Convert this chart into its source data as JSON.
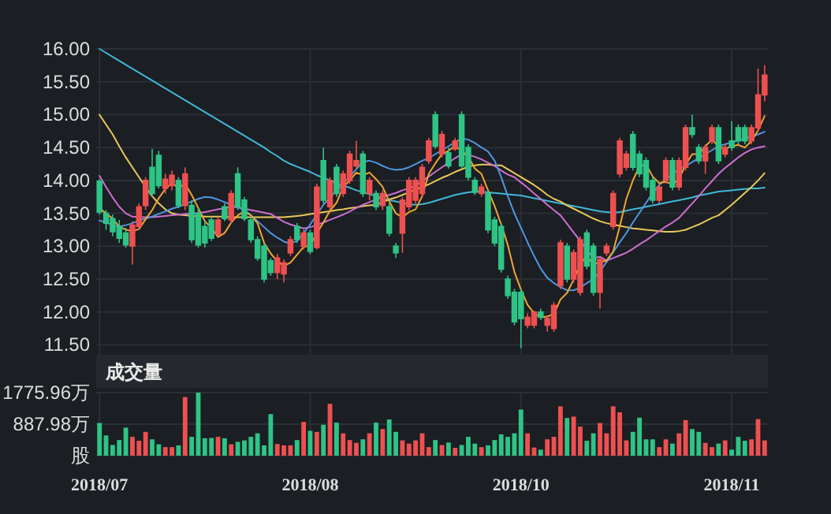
{
  "chart_data": [
    {
      "type": "candlestick",
      "tick_labels": "y",
      "grid": true,
      "ylim": [
        11.35,
        16
      ],
      "yticks": [
        {
          "value": 11.5,
          "label": "11.50"
        },
        {
          "value": 12,
          "label": "12.00"
        },
        {
          "value": 12.5,
          "label": "12.50"
        },
        {
          "value": 13,
          "label": "13.00"
        },
        {
          "value": 13.5,
          "label": "13.50"
        },
        {
          "value": 14,
          "label": "14.00"
        },
        {
          "value": 14.5,
          "label": "14.50"
        },
        {
          "value": 15,
          "label": "15.00"
        },
        {
          "value": 15.5,
          "label": "15.50"
        },
        {
          "value": 16,
          "label": "16.00"
        }
      ],
      "categories": [
        "2018/07",
        null,
        null,
        null,
        null,
        null,
        null,
        null,
        null,
        null,
        null,
        null,
        null,
        null,
        null,
        null,
        null,
        null,
        null,
        null,
        null,
        null,
        null,
        null,
        null,
        null,
        null,
        null,
        null,
        null,
        null,
        null,
        "2018/08",
        null,
        null,
        null,
        null,
        null,
        null,
        null,
        null,
        null,
        null,
        null,
        null,
        null,
        null,
        null,
        null,
        null,
        null,
        null,
        null,
        null,
        null,
        null,
        null,
        null,
        null,
        null,
        null,
        null,
        null,
        null,
        "2018/10",
        null,
        null,
        null,
        null,
        null,
        null,
        null,
        null,
        null,
        null,
        null,
        null,
        null,
        null,
        null,
        null,
        null,
        null,
        null,
        null,
        null,
        null,
        null,
        null,
        null,
        null,
        null,
        null,
        null,
        null,
        null,
        "2018/11",
        null,
        null,
        null,
        null,
        null
      ],
      "ohlc": [
        [
          13.99,
          14.02,
          13.48,
          13.52
        ],
        [
          13.5,
          13.55,
          13.25,
          13.35
        ],
        [
          13.42,
          13.48,
          13.15,
          13.22
        ],
        [
          13.3,
          13.4,
          13.05,
          13.12
        ],
        [
          13.2,
          13.28,
          12.98,
          13.02
        ],
        [
          13.0,
          13.38,
          12.72,
          13.32
        ],
        [
          13.3,
          13.65,
          13.25,
          13.6
        ],
        [
          13.62,
          14.05,
          13.55,
          14.0
        ],
        [
          14.2,
          14.48,
          13.75,
          13.8
        ],
        [
          14.38,
          14.45,
          13.88,
          13.92
        ],
        [
          13.88,
          14.1,
          13.8,
          14.02
        ],
        [
          13.92,
          14.15,
          13.85,
          14.08
        ],
        [
          14.0,
          14.05,
          13.58,
          13.62
        ],
        [
          13.62,
          14.2,
          13.55,
          14.1
        ],
        [
          13.62,
          13.7,
          13.05,
          13.1
        ],
        [
          13.5,
          13.58,
          12.98,
          13.02
        ],
        [
          13.3,
          13.38,
          12.98,
          13.05
        ],
        [
          13.4,
          13.45,
          13.08,
          13.12
        ],
        [
          13.18,
          13.45,
          13.15,
          13.4
        ],
        [
          13.6,
          13.65,
          13.38,
          13.42
        ],
        [
          13.4,
          13.85,
          13.35,
          13.8
        ],
        [
          14.1,
          14.2,
          13.55,
          13.6
        ],
        [
          13.7,
          13.75,
          13.38,
          13.42
        ],
        [
          13.4,
          13.45,
          13.05,
          13.1
        ],
        [
          13.1,
          13.15,
          12.78,
          12.82
        ],
        [
          13.0,
          13.05,
          12.45,
          12.5
        ],
        [
          12.78,
          12.82,
          12.55,
          12.6
        ],
        [
          12.6,
          12.88,
          12.5,
          12.82
        ],
        [
          12.58,
          12.8,
          12.45,
          12.75
        ],
        [
          12.9,
          13.15,
          12.85,
          13.1
        ],
        [
          13.3,
          13.35,
          13.05,
          13.1
        ],
        [
          13.0,
          13.25,
          12.95,
          13.2
        ],
        [
          13.2,
          13.25,
          12.88,
          12.92
        ],
        [
          12.98,
          13.95,
          12.95,
          13.9
        ],
        [
          14.3,
          14.5,
          13.65,
          13.7
        ],
        [
          13.6,
          14.05,
          13.55,
          14.0
        ],
        [
          14.2,
          14.25,
          13.75,
          13.8
        ],
        [
          13.8,
          14.15,
          13.75,
          14.1
        ],
        [
          14.0,
          14.45,
          13.95,
          14.4
        ],
        [
          14.22,
          14.6,
          14.18,
          14.3
        ],
        [
          14.4,
          14.45,
          13.75,
          13.8
        ],
        [
          13.8,
          14.05,
          13.7,
          14.0
        ],
        [
          13.8,
          13.85,
          13.55,
          13.6
        ],
        [
          13.62,
          13.85,
          13.55,
          13.8
        ],
        [
          13.6,
          13.65,
          13.15,
          13.2
        ],
        [
          13.0,
          13.05,
          12.82,
          12.9
        ],
        [
          13.2,
          13.75,
          12.9,
          13.7
        ],
        [
          13.6,
          14.05,
          13.55,
          14.0
        ],
        [
          13.7,
          14.05,
          13.65,
          14.0
        ],
        [
          13.8,
          14.25,
          13.75,
          14.2
        ],
        [
          14.3,
          14.65,
          14.25,
          14.6
        ],
        [
          15.0,
          15.05,
          14.48,
          14.52
        ],
        [
          14.4,
          14.75,
          14.35,
          14.7
        ],
        [
          14.42,
          14.5,
          14.18,
          14.22
        ],
        [
          14.48,
          14.65,
          14.45,
          14.6
        ],
        [
          15.0,
          15.05,
          14.18,
          14.22
        ],
        [
          14.5,
          14.55,
          14.0,
          14.05
        ],
        [
          14.0,
          14.05,
          13.78,
          13.82
        ],
        [
          13.8,
          13.95,
          13.75,
          13.9
        ],
        [
          13.8,
          13.85,
          13.2,
          13.25
        ],
        [
          13.4,
          13.45,
          13.0,
          13.05
        ],
        [
          13.3,
          13.35,
          12.6,
          12.65
        ],
        [
          12.5,
          12.55,
          12.2,
          12.25
        ],
        [
          12.3,
          12.35,
          11.8,
          11.85
        ],
        [
          12.3,
          12.35,
          11.45,
          11.9
        ],
        [
          11.8,
          11.98,
          11.75,
          11.92
        ],
        [
          11.8,
          12.02,
          11.75,
          12.0
        ],
        [
          12.0,
          12.05,
          11.88,
          11.92
        ],
        [
          11.8,
          11.95,
          11.7,
          11.9
        ],
        [
          11.75,
          12.15,
          11.7,
          12.1
        ],
        [
          12.4,
          13.1,
          12.35,
          13.05
        ],
        [
          13.0,
          13.05,
          12.45,
          12.5
        ],
        [
          12.5,
          12.95,
          12.45,
          12.9
        ],
        [
          12.3,
          13.15,
          12.25,
          13.1
        ],
        [
          13.2,
          13.25,
          12.65,
          12.7
        ],
        [
          13.0,
          13.05,
          12.25,
          12.3
        ],
        [
          12.3,
          12.85,
          12.05,
          12.8
        ],
        [
          12.9,
          13.05,
          12.85,
          13.0
        ],
        [
          13.3,
          13.85,
          13.25,
          13.8
        ],
        [
          14.1,
          14.65,
          14.05,
          14.6
        ],
        [
          14.2,
          14.45,
          14.15,
          14.4
        ],
        [
          14.7,
          14.75,
          14.15,
          14.2
        ],
        [
          14.4,
          14.45,
          14.05,
          14.1
        ],
        [
          14.3,
          14.35,
          13.85,
          13.9
        ],
        [
          14.0,
          14.05,
          13.65,
          13.7
        ],
        [
          13.7,
          13.95,
          13.65,
          13.9
        ],
        [
          14.0,
          14.35,
          13.95,
          14.3
        ],
        [
          14.3,
          14.35,
          13.85,
          13.9
        ],
        [
          13.9,
          14.35,
          13.85,
          14.3
        ],
        [
          14.2,
          14.85,
          14.15,
          14.8
        ],
        [
          14.8,
          15.0,
          14.65,
          14.7
        ],
        [
          14.5,
          14.55,
          14.25,
          14.3
        ],
        [
          14.3,
          14.55,
          14.1,
          14.5
        ],
        [
          14.6,
          14.85,
          14.55,
          14.8
        ],
        [
          14.8,
          14.85,
          14.25,
          14.3
        ],
        [
          14.4,
          14.55,
          14.35,
          14.5
        ],
        [
          14.6,
          14.9,
          14.45,
          14.5
        ],
        [
          14.8,
          14.85,
          14.55,
          14.6
        ],
        [
          14.8,
          14.85,
          14.55,
          14.6
        ],
        [
          14.6,
          14.85,
          14.55,
          14.8
        ],
        [
          14.8,
          15.7,
          14.75,
          15.3
        ],
        [
          15.3,
          15.75,
          15.2,
          15.6
        ]
      ],
      "colors": [
        "#2ec486",
        "#2ec486",
        "#2ec486",
        "#2ec486",
        "#2ec486",
        "#ee5050",
        "#ee5050",
        "#ee5050",
        "#2ec486",
        "#2ec486",
        "#ee5050",
        "#ee5050",
        "#2ec486",
        "#ee5050",
        "#2ec486",
        "#2ec486",
        "#2ec486",
        "#2ec486",
        "#ee5050",
        "#2ec486",
        "#ee5050",
        "#2ec486",
        "#2ec486",
        "#2ec486",
        "#2ec486",
        "#2ec486",
        "#2ec486",
        "#ee5050",
        "#ee5050",
        "#ee5050",
        "#2ec486",
        "#ee5050",
        "#2ec486",
        "#ee5050",
        "#2ec486",
        "#ee5050",
        "#2ec486",
        "#ee5050",
        "#ee5050",
        "#ee5050",
        "#2ec486",
        "#ee5050",
        "#2ec486",
        "#ee5050",
        "#2ec486",
        "#2ec486",
        "#ee5050",
        "#ee5050",
        "#ee5050",
        "#ee5050",
        "#ee5050",
        "#2ec486",
        "#ee5050",
        "#2ec486",
        "#ee5050",
        "#2ec486",
        "#2ec486",
        "#2ec486",
        "#ee5050",
        "#2ec486",
        "#2ec486",
        "#2ec486",
        "#2ec486",
        "#2ec486",
        "#2ec486",
        "#ee5050",
        "#ee5050",
        "#2ec486",
        "#ee5050",
        "#ee5050",
        "#ee5050",
        "#2ec486",
        "#ee5050",
        "#ee5050",
        "#2ec486",
        "#2ec486",
        "#ee5050",
        "#ee5050",
        "#ee5050",
        "#ee5050",
        "#ee5050",
        "#2ec486",
        "#2ec486",
        "#2ec486",
        "#2ec486",
        "#ee5050",
        "#ee5050",
        "#2ec486",
        "#ee5050",
        "#ee5050",
        "#2ec486",
        "#2ec486",
        "#ee5050",
        "#ee5050",
        "#2ec486",
        "#ee5050",
        "#2ec486",
        "#2ec486",
        "#2ec486",
        "#ee5050",
        "#ee5050",
        "#ee5050"
      ],
      "series": [
        {
          "type": "line",
          "color": "#3fb8d8",
          "values": [
            16.0,
            15.94,
            15.88,
            15.82,
            15.76,
            15.7,
            15.64,
            15.58,
            15.52,
            15.46,
            15.4,
            15.34,
            15.28,
            15.22,
            15.16,
            15.1,
            15.04,
            14.98,
            14.92,
            14.86,
            14.8,
            14.74,
            14.68,
            14.62,
            14.56,
            14.5,
            14.43,
            14.37,
            14.3,
            14.25,
            14.21,
            14.17,
            14.13,
            14.08,
            14.04,
            14.0,
            13.96,
            13.92,
            13.89,
            13.85,
            13.82,
            13.79,
            13.76,
            13.73,
            13.7,
            13.68,
            13.66,
            13.64,
            13.63,
            13.64,
            13.66,
            13.69,
            13.72,
            13.75,
            13.78,
            13.8,
            13.82,
            13.83,
            13.83,
            13.82,
            13.81,
            13.8,
            13.79,
            13.78,
            13.77,
            13.75,
            13.73,
            13.71,
            13.69,
            13.67,
            13.65,
            13.63,
            13.61,
            13.59,
            13.57,
            13.55,
            13.53,
            13.52,
            13.51,
            13.52,
            13.54,
            13.56,
            13.58,
            13.6,
            13.62,
            13.64,
            13.66,
            13.68,
            13.7,
            13.72,
            13.74,
            13.77,
            13.79,
            13.81,
            13.83,
            13.84,
            13.85,
            13.86,
            13.87,
            13.88,
            13.88,
            13.89
          ]
        },
        {
          "type": "line",
          "color": "#e8c95a",
          "values": [
            15.0,
            14.85,
            14.7,
            14.52,
            14.35,
            14.2,
            14.05,
            13.9,
            13.76,
            13.65,
            13.56,
            13.5,
            13.48,
            13.47,
            13.46,
            13.46,
            13.45,
            13.45,
            13.45,
            13.45,
            13.44,
            13.44,
            13.44,
            13.44,
            13.44,
            13.44,
            13.44,
            13.44,
            13.44,
            13.45,
            13.46,
            13.47,
            13.49,
            13.5,
            13.52,
            13.53,
            13.55,
            13.56,
            13.58,
            13.59,
            13.61,
            13.62,
            13.63,
            13.67,
            13.71,
            13.74,
            13.78,
            13.82,
            13.86,
            13.9,
            13.94,
            13.99,
            14.04,
            14.08,
            14.13,
            14.17,
            14.21,
            14.23,
            14.24,
            14.24,
            14.23,
            14.23,
            14.17,
            14.11,
            14.05,
            13.99,
            13.93,
            13.86,
            13.78,
            13.72,
            13.68,
            13.62,
            13.57,
            13.52,
            13.47,
            13.42,
            13.38,
            13.35,
            13.33,
            13.31,
            13.29,
            13.27,
            13.26,
            13.25,
            13.24,
            13.23,
            13.22,
            13.22,
            13.23,
            13.25,
            13.29,
            13.33,
            13.38,
            13.43,
            13.47,
            13.55,
            13.63,
            13.72,
            13.81,
            13.9,
            14.0,
            14.11
          ]
        },
        {
          "type": "line",
          "color": "#cc6fd0",
          "values": [
            14.07,
            13.9,
            13.74,
            13.6,
            13.5,
            13.45,
            13.44,
            13.44,
            13.44,
            13.45,
            13.46,
            13.47,
            13.48,
            13.49,
            13.5,
            13.5,
            13.52,
            13.54,
            13.56,
            13.58,
            13.6,
            13.59,
            13.57,
            13.55,
            13.53,
            13.51,
            13.49,
            13.43,
            13.37,
            13.33,
            13.3,
            13.27,
            13.29,
            13.32,
            13.36,
            13.4,
            13.44,
            13.48,
            13.53,
            13.58,
            13.63,
            13.67,
            13.71,
            13.75,
            13.78,
            13.81,
            13.85,
            13.88,
            13.92,
            13.99,
            14.06,
            14.13,
            14.2,
            14.27,
            14.34,
            14.4,
            14.39,
            14.36,
            14.32,
            14.27,
            14.22,
            14.15,
            14.09,
            14.05,
            13.97,
            13.89,
            13.8,
            13.72,
            13.63,
            13.55,
            13.47,
            13.34,
            13.21,
            13.08,
            12.95,
            12.82,
            12.84,
            12.78,
            12.82,
            12.86,
            12.9,
            12.96,
            13.03,
            13.09,
            13.16,
            13.23,
            13.3,
            13.36,
            13.43,
            13.54,
            13.65,
            13.76,
            13.88,
            13.99,
            14.1,
            14.19,
            14.27,
            14.35,
            14.42,
            14.47,
            14.5,
            14.52
          ]
        },
        {
          "type": "line",
          "color": "#4f96e0",
          "values": [
            13.39,
            13.36,
            13.32,
            13.3,
            13.32,
            13.35,
            13.39,
            13.42,
            13.45,
            13.49,
            13.53,
            13.57,
            13.6,
            13.64,
            13.68,
            13.72,
            13.75,
            13.74,
            13.71,
            13.67,
            13.63,
            13.59,
            13.55,
            13.47,
            13.38,
            13.29,
            13.2,
            13.13,
            13.07,
            13.04,
            13.08,
            13.2,
            13.33,
            13.48,
            13.63,
            13.74,
            13.85,
            13.95,
            14.06,
            14.17,
            14.28,
            14.3,
            14.27,
            14.22,
            14.18,
            14.16,
            14.17,
            14.2,
            14.25,
            14.3,
            14.34,
            14.4,
            14.46,
            14.52,
            14.58,
            14.64,
            14.62,
            14.57,
            14.5,
            14.44,
            14.3,
            14.05,
            13.76,
            13.5,
            13.28,
            13.06,
            12.85,
            12.66,
            12.52,
            12.44,
            12.38,
            12.33,
            12.33,
            12.37,
            12.44,
            12.5,
            12.62,
            12.76,
            12.91,
            13.06,
            13.2,
            13.36,
            13.51,
            13.66,
            13.81,
            13.93,
            14.02,
            14.1,
            14.17,
            14.22,
            14.28,
            14.34,
            14.4,
            14.46,
            14.52,
            14.55,
            14.58,
            14.61,
            14.64,
            14.67,
            14.7,
            14.74
          ]
        },
        {
          "type": "line",
          "color": "#f0a630",
          "values": [
            13.58,
            13.5,
            13.42,
            13.3,
            13.25,
            13.23,
            13.26,
            13.41,
            13.55,
            13.73,
            13.87,
            13.96,
            13.89,
            13.95,
            13.78,
            13.58,
            13.38,
            13.28,
            13.14,
            13.2,
            13.36,
            13.47,
            13.53,
            13.47,
            13.35,
            13.05,
            12.89,
            12.77,
            12.7,
            12.75,
            12.87,
            12.99,
            13.01,
            13.2,
            13.36,
            13.54,
            13.66,
            13.9,
            14.0,
            14.12,
            14.08,
            14.12,
            14.02,
            13.9,
            13.68,
            13.5,
            13.44,
            13.52,
            13.56,
            13.76,
            14.1,
            14.26,
            14.4,
            14.45,
            14.53,
            14.45,
            14.36,
            14.18,
            14.1,
            13.85,
            13.61,
            13.33,
            13.02,
            12.61,
            12.34,
            12.11,
            11.98,
            11.92,
            11.93,
            11.97,
            12.19,
            12.29,
            12.49,
            12.73,
            12.85,
            12.72,
            12.76,
            12.78,
            12.92,
            13.3,
            13.72,
            14.0,
            14.22,
            14.24,
            14.06,
            13.96,
            13.98,
            13.94,
            14.02,
            14.24,
            14.4,
            14.4,
            14.52,
            14.62,
            14.52,
            14.48,
            14.52,
            14.54,
            14.5,
            14.6,
            14.76,
            14.98
          ]
        }
      ]
    },
    {
      "type": "bar",
      "title": "成交量",
      "grid": true,
      "ylim": [
        0,
        1775.96
      ],
      "yticks": [
        {
          "value": 0,
          "label": "股"
        },
        {
          "value": 887.98,
          "label": "887.98万"
        },
        {
          "value": 1775.96,
          "label": "1775.96万"
        }
      ],
      "categories": [
        "2018/07",
        null,
        null,
        null,
        null,
        null,
        null,
        null,
        null,
        null,
        null,
        null,
        null,
        null,
        null,
        null,
        null,
        null,
        null,
        null,
        null,
        null,
        null,
        null,
        null,
        null,
        null,
        null,
        null,
        null,
        null,
        null,
        "2018/08",
        null,
        null,
        null,
        null,
        null,
        null,
        null,
        null,
        null,
        null,
        null,
        null,
        null,
        null,
        null,
        null,
        null,
        null,
        null,
        null,
        null,
        null,
        null,
        null,
        null,
        null,
        null,
        null,
        null,
        null,
        null,
        "2018/10",
        null,
        null,
        null,
        null,
        null,
        null,
        null,
        null,
        null,
        null,
        null,
        null,
        null,
        null,
        null,
        null,
        null,
        null,
        null,
        null,
        null,
        null,
        null,
        null,
        null,
        null,
        null,
        null,
        null,
        null,
        null,
        "2018/11",
        null,
        null,
        null,
        null,
        null
      ],
      "values": [
        920,
        570,
        300,
        440,
        790,
        530,
        420,
        670,
        460,
        320,
        240,
        240,
        290,
        1650,
        530,
        1775.96,
        490,
        500,
        530,
        490,
        320,
        390,
        430,
        530,
        630,
        290,
        1170,
        330,
        290,
        290,
        440,
        950,
        700,
        670,
        870,
        1460,
        930,
        630,
        440,
        360,
        460,
        630,
        930,
        750,
        1020,
        670,
        430,
        340,
        430,
        630,
        240,
        440,
        300,
        370,
        220,
        300,
        530,
        340,
        240,
        290,
        440,
        600,
        530,
        630,
        1300,
        630,
        230,
        170,
        460,
        530,
        1390,
        1060,
        1100,
        820,
        420,
        630,
        920,
        630,
        1390,
        1220,
        430,
        670,
        1070,
        460,
        460,
        240,
        460,
        340,
        630,
        1000,
        750,
        670,
        360,
        240,
        340,
        430,
        170,
        530,
        420,
        460,
        1030,
        430
      ],
      "colors": [
        "#2ec486",
        "#2ec486",
        "#2ec486",
        "#2ec486",
        "#2ec486",
        "#ee5050",
        "#ee5050",
        "#ee5050",
        "#2ec486",
        "#2ec486",
        "#ee5050",
        "#ee5050",
        "#2ec486",
        "#ee5050",
        "#2ec486",
        "#2ec486",
        "#2ec486",
        "#2ec486",
        "#ee5050",
        "#2ec486",
        "#ee5050",
        "#2ec486",
        "#2ec486",
        "#2ec486",
        "#2ec486",
        "#2ec486",
        "#2ec486",
        "#ee5050",
        "#ee5050",
        "#ee5050",
        "#2ec486",
        "#ee5050",
        "#2ec486",
        "#ee5050",
        "#2ec486",
        "#ee5050",
        "#2ec486",
        "#ee5050",
        "#ee5050",
        "#ee5050",
        "#2ec486",
        "#ee5050",
        "#2ec486",
        "#ee5050",
        "#2ec486",
        "#2ec486",
        "#ee5050",
        "#ee5050",
        "#ee5050",
        "#ee5050",
        "#ee5050",
        "#2ec486",
        "#ee5050",
        "#2ec486",
        "#ee5050",
        "#2ec486",
        "#2ec486",
        "#2ec486",
        "#ee5050",
        "#2ec486",
        "#2ec486",
        "#2ec486",
        "#2ec486",
        "#2ec486",
        "#2ec486",
        "#ee5050",
        "#ee5050",
        "#2ec486",
        "#ee5050",
        "#ee5050",
        "#ee5050",
        "#2ec486",
        "#ee5050",
        "#ee5050",
        "#2ec486",
        "#2ec486",
        "#ee5050",
        "#ee5050",
        "#ee5050",
        "#ee5050",
        "#ee5050",
        "#2ec486",
        "#2ec486",
        "#2ec486",
        "#2ec486",
        "#ee5050",
        "#ee5050",
        "#2ec486",
        "#ee5050",
        "#ee5050",
        "#2ec486",
        "#2ec486",
        "#ee5050",
        "#ee5050",
        "#2ec486",
        "#ee5050",
        "#2ec486",
        "#2ec486",
        "#2ec486",
        "#ee5050",
        "#ee5050",
        "#ee5050"
      ]
    }
  ]
}
